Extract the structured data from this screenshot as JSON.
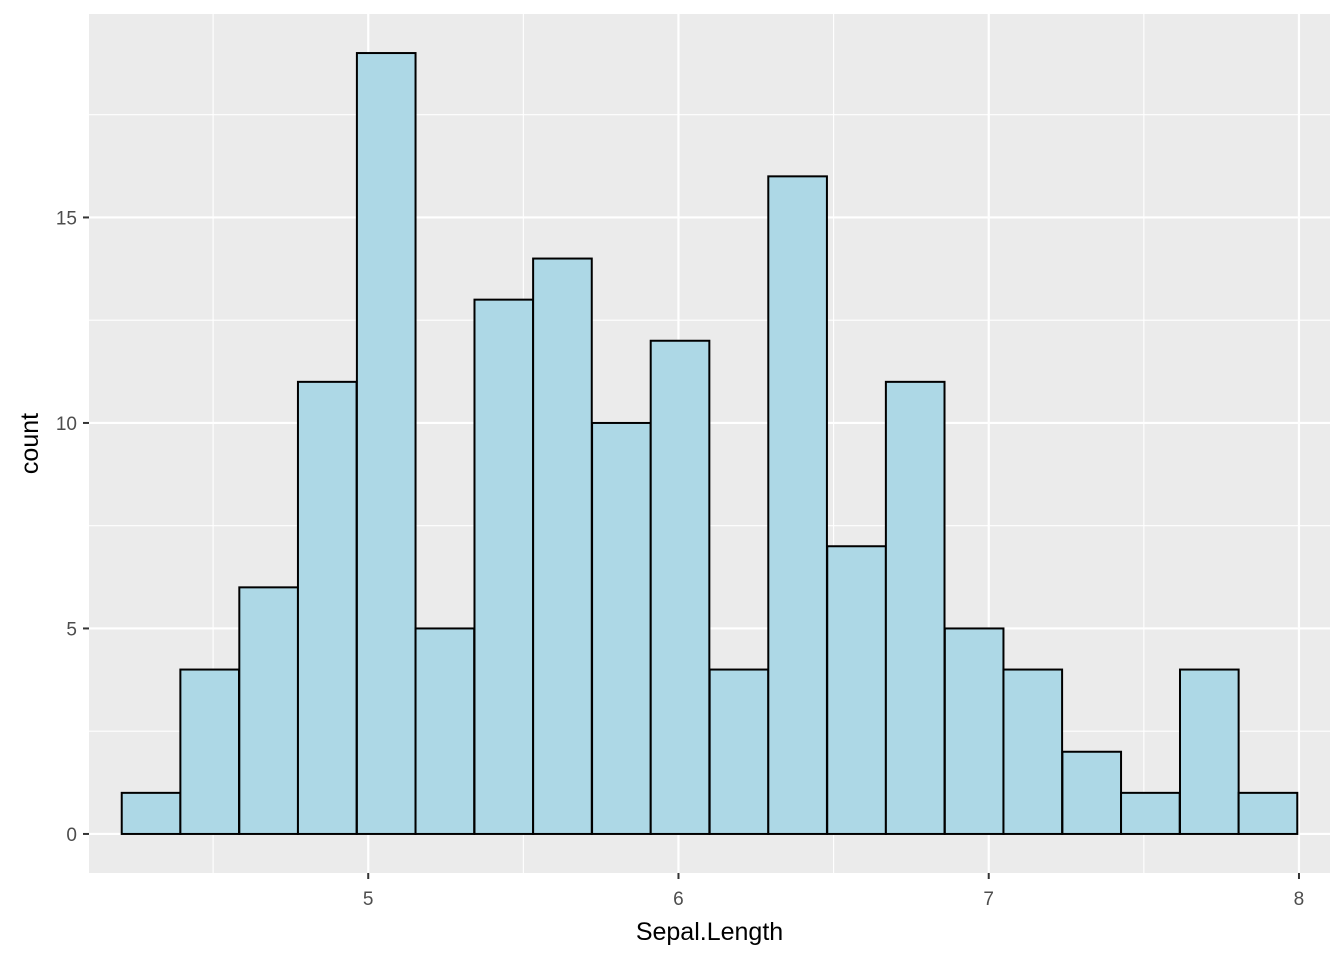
{
  "chart_data": {
    "type": "bar",
    "chart_kind": "histogram",
    "xlabel": "Sepal.Length",
    "ylabel": "count",
    "xlim": [
      4.1,
      8.1
    ],
    "ylim": [
      -0.95,
      19.95
    ],
    "x_ticks": [
      5,
      6,
      7,
      8
    ],
    "y_ticks": [
      0,
      5,
      10,
      15
    ],
    "x_minor": [
      4.5,
      5.5,
      6.5,
      7.5
    ],
    "y_minor": [
      2.5,
      7.5,
      12.5,
      17.5
    ],
    "bin_width": 0.189,
    "bins": [
      {
        "x": 4.3,
        "count": 1
      },
      {
        "x": 4.489,
        "count": 4
      },
      {
        "x": 4.679,
        "count": 6
      },
      {
        "x": 4.868,
        "count": 11
      },
      {
        "x": 5.058,
        "count": 19
      },
      {
        "x": 5.247,
        "count": 5
      },
      {
        "x": 5.437,
        "count": 13
      },
      {
        "x": 5.626,
        "count": 14
      },
      {
        "x": 5.816,
        "count": 10
      },
      {
        "x": 6.005,
        "count": 12
      },
      {
        "x": 6.195,
        "count": 4
      },
      {
        "x": 6.384,
        "count": 16
      },
      {
        "x": 6.574,
        "count": 7
      },
      {
        "x": 6.763,
        "count": 11
      },
      {
        "x": 6.953,
        "count": 5
      },
      {
        "x": 7.142,
        "count": 4
      },
      {
        "x": 7.332,
        "count": 2
      },
      {
        "x": 7.521,
        "count": 1
      },
      {
        "x": 7.711,
        "count": 4
      },
      {
        "x": 7.9,
        "count": 1
      }
    ],
    "grid": true,
    "legend": "none",
    "colors": {
      "panel_background": "#ebebeb",
      "grid": "#ffffff",
      "bar_fill": "#add8e6",
      "bar_stroke": "#000000",
      "tick_text": "#4d4d4d",
      "axis_text": "#000000"
    }
  }
}
